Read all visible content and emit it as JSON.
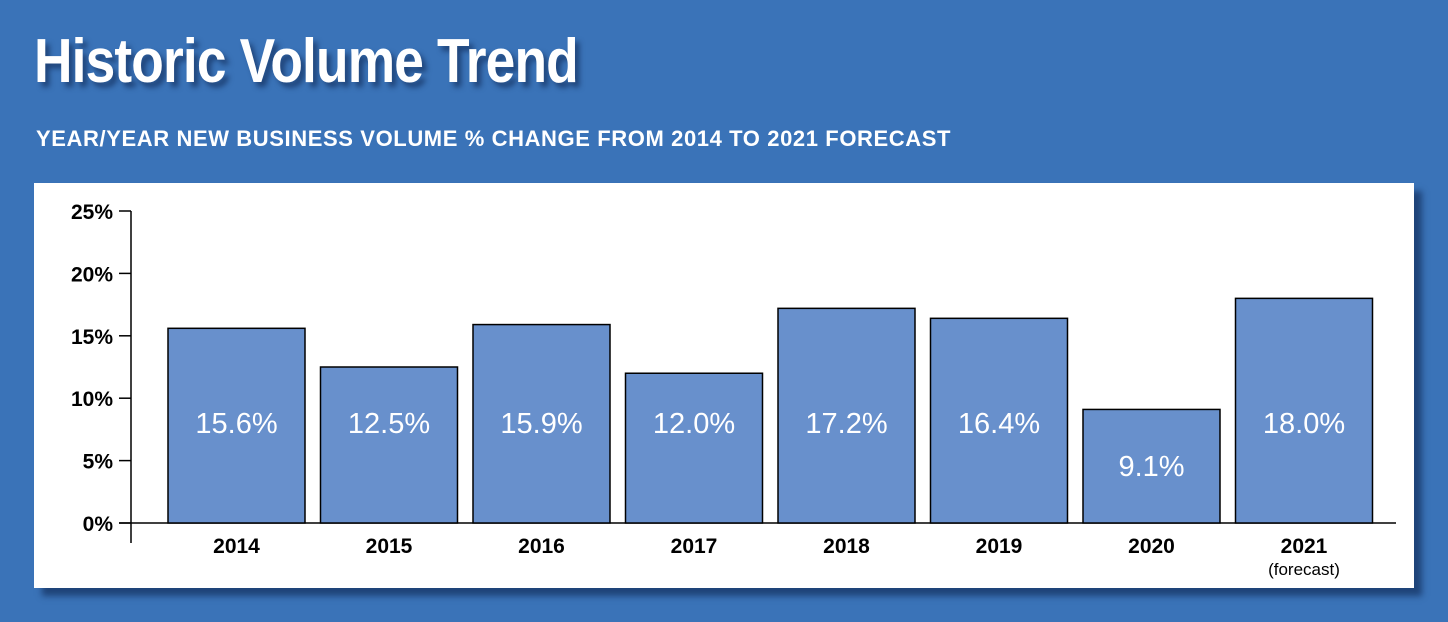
{
  "header": {
    "title": "Historic Volume Trend",
    "subtitle": "YEAR/YEAR NEW BUSINESS VOLUME % CHANGE FROM 2014 TO 2021 FORECAST"
  },
  "colors": {
    "background": "#3a73b8",
    "bar_fill": "#6890cc",
    "bar_stroke": "#000000",
    "panel": "#ffffff",
    "text_light": "#ffffff"
  },
  "chart_data": {
    "type": "bar",
    "categories": [
      "2014",
      "2015",
      "2016",
      "2017",
      "2018",
      "2019",
      "2020",
      "2021"
    ],
    "category_notes": [
      "",
      "",
      "",
      "",
      "",
      "",
      "",
      "(forecast)"
    ],
    "values": [
      15.6,
      12.5,
      15.9,
      12.0,
      17.2,
      16.4,
      9.1,
      18.0
    ],
    "data_labels": [
      "15.6%",
      "12.5%",
      "15.9%",
      "12.0%",
      "17.2%",
      "16.4%",
      "9.1%",
      "18.0%"
    ],
    "ylim": [
      0,
      25
    ],
    "yticks": [
      0,
      5,
      10,
      15,
      20,
      25
    ],
    "ytick_labels": [
      "0%",
      "5%",
      "10%",
      "15%",
      "20%",
      "25%"
    ],
    "grid": false,
    "legend": "none",
    "xlabel": "",
    "ylabel": ""
  }
}
